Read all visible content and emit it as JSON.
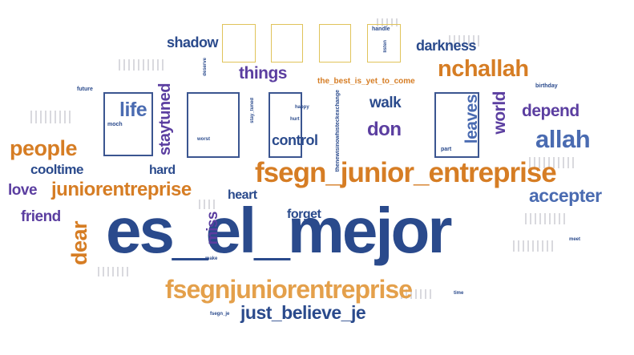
{
  "palette": {
    "dark_blue": "#2a4a8c",
    "purple": "#5b3ea0",
    "orange": "#d67d24",
    "medium_blue": "#4a6bb1",
    "light_orange": "#e4a04b",
    "box_gold": "#e0c35a",
    "box_blue": "#3b5590"
  },
  "words": {
    "es_el_mejor": "es_el_mejor",
    "fsegn_junior_entreprise": "fsegn_junior_entreprise",
    "fsegnjuniorentreprise": "fsegnjuniorentreprise",
    "juniorentreprise": "juniorentreprise",
    "just_believe_je": "just_believe_je",
    "nchallah": "nchallah",
    "allah": "allah",
    "people": "people",
    "accepter": "accepter",
    "depend": "depend",
    "things": "things",
    "darkness": "darkness",
    "shadow": "shadow",
    "life": "life",
    "control": "control",
    "walk": "walk",
    "don": "don",
    "leaves": "leaves",
    "world": "world",
    "staytuned": "staytuned",
    "cooltime": "cooltime",
    "hard": "hard",
    "love": "love",
    "heart": "heart",
    "friend": "friend",
    "dear": "dear",
    "miss": "miss",
    "forget": "forget",
    "the_best_is_yet_to_come": "the_best_is_yet_to_come",
    "happy": "happy",
    "hurt": "hurt",
    "stay_tuned": "stay_tuned",
    "deserve": "deserve",
    "future": "future",
    "moch": "moch",
    "worst": "worst",
    "part": "part",
    "birthday": "birthday",
    "handle": "handle",
    "listen": "listen",
    "thenewisinowhisteckexchange": "thenewisinowhisteckexchange",
    "make": "make",
    "meet": "meet",
    "time": "time",
    "fsegn_je": "fsegn_je"
  }
}
